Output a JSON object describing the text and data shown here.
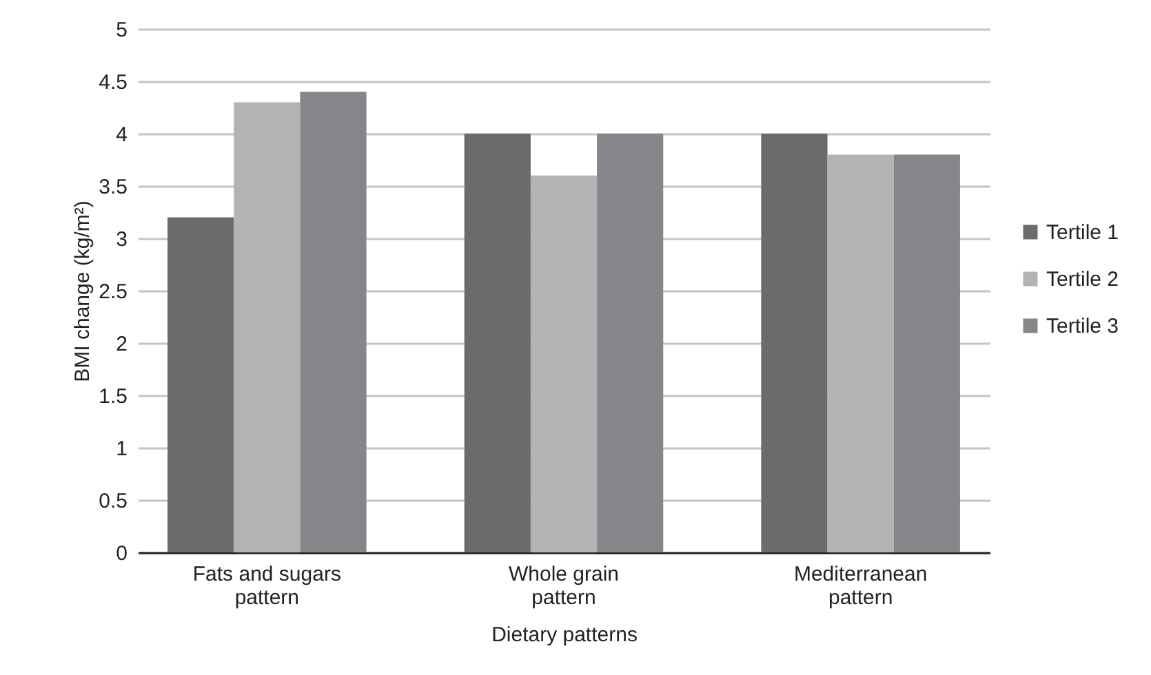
{
  "chart_data": {
    "type": "bar",
    "xlabel": "Dietary patterns",
    "ylabel": "BMI change (kg/m²)",
    "categories": [
      "Fats and sugars pattern",
      "Whole grain pattern",
      "Mediterranean pattern"
    ],
    "series": [
      {
        "name": "Tertile 1",
        "color": "#6b6b6e",
        "values": [
          3.2,
          4,
          4
        ]
      },
      {
        "name": "Tertile 2",
        "color": "#b3b3b6",
        "values": [
          4.3,
          3.6,
          3.8
        ]
      },
      {
        "name": "Tertile 3",
        "color": "#86868a",
        "values": [
          4.4,
          4,
          3.8
        ]
      }
    ],
    "ylim": [
      0,
      5
    ],
    "yticks": [
      0,
      0.5,
      1,
      1.5,
      2,
      2.5,
      3,
      3.5,
      4,
      4.5,
      5
    ],
    "grid": "y",
    "legend": "right"
  }
}
